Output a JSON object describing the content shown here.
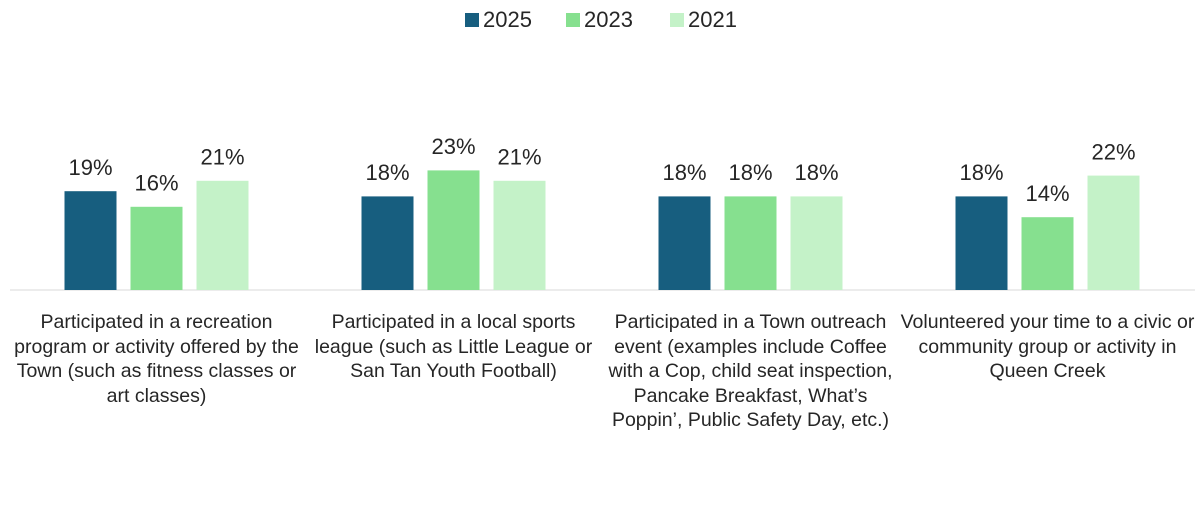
{
  "chart_data": {
    "type": "bar",
    "categories": [
      "Participated in a recreation program or activity offered by the Town (such as fitness classes or art classes)",
      "Participated in a local sports league (such as Little League or San Tan Youth Football)",
      "Participated in a Town outreach event (examples include Coffee with a Cop, child seat inspection, Pancake Breakfast, What’s Poppin’, Public Safety Day, etc.)",
      "Volunteered your time to a civic or community group or activity in Queen Creek"
    ],
    "series": [
      {
        "name": "2025",
        "color": "#175e7f",
        "values": [
          19,
          18,
          18,
          18
        ],
        "value_labels": [
          "19%",
          "18%",
          "18%",
          "18%"
        ]
      },
      {
        "name": "2023",
        "color": "#86e08f",
        "values": [
          16,
          23,
          18,
          14
        ],
        "value_labels": [
          "16%",
          "23%",
          "18%",
          "14%"
        ]
      },
      {
        "name": "2021",
        "color": "#c4f2c8",
        "values": [
          21,
          21,
          18,
          22
        ],
        "value_labels": [
          "21%",
          "21%",
          "18%",
          "22%"
        ]
      }
    ],
    "ylim": [
      0,
      40
    ],
    "legend": "top"
  }
}
